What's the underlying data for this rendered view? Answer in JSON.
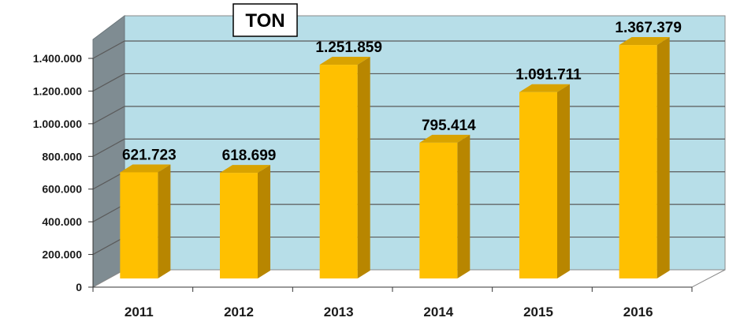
{
  "chart_data": {
    "type": "bar",
    "unit_label": "TON",
    "categories": [
      "2011",
      "2012",
      "2013",
      "2014",
      "2015",
      "2016"
    ],
    "values": [
      621723,
      618699,
      1251859,
      795414,
      1091711,
      1367379
    ],
    "value_labels": [
      "621.723",
      "618.699",
      "1.251.859",
      "795.414",
      "1.091.711",
      "1.367.379"
    ],
    "yticks": [
      0,
      200000,
      400000,
      600000,
      800000,
      1000000,
      1200000,
      1400000
    ],
    "ytick_labels": [
      "0",
      "200.000",
      "400.000",
      "600.000",
      "800.000",
      "1.000.000",
      "1.200.000",
      "1.400.000"
    ],
    "ylim": [
      0,
      1400000
    ],
    "grid": true,
    "legend": "none",
    "style": "3d-column",
    "colors": {
      "bar_front": "#FFC000",
      "bar_side": "#B88600",
      "bar_top": "#D9A300",
      "back_wall": "#B7DEE8",
      "side_wall": "#7F8C92",
      "floor": "#FFFFFF",
      "gridline": "#5A5A5A"
    }
  }
}
